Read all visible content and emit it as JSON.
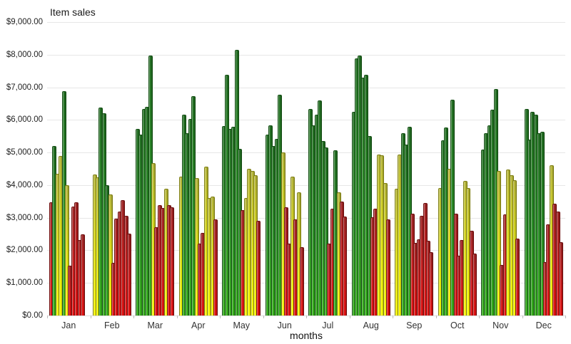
{
  "title": "Item sales",
  "x_axis_title": "months",
  "chart_data": {
    "type": "bar",
    "title": "Item sales",
    "xlabel": "months",
    "ylabel": "",
    "ylim": [
      0,
      9000
    ],
    "ytick_step": 1000,
    "grid": true,
    "legend": false,
    "ytick_labels_top_to_bottom": [
      "$9,000.00",
      "$8,000.00",
      "$7,000.00",
      "$6,000.00",
      "$5,000.00",
      "$4,000.00",
      "$3,000.00",
      "$2,000.00",
      "$1,000.00",
      "$0.00"
    ],
    "categories": [
      "Jan",
      "Feb",
      "Mar",
      "Apr",
      "May",
      "Jun",
      "Jul",
      "Aug",
      "Sep",
      "Oct",
      "Nov",
      "Dec"
    ],
    "color_legend": {
      "G": "green-high",
      "Y": "yellow-mid",
      "R": "red-low"
    },
    "colors": {
      "G": "#2c8f28",
      "Y": "#e6e600",
      "R": "#c81d1d"
    },
    "bars_by_month": [
      {
        "month": "Jan",
        "bars": [
          [
            3480,
            "R"
          ],
          [
            5200,
            "G"
          ],
          [
            4350,
            "Y"
          ],
          [
            4900,
            "Y"
          ],
          [
            6880,
            "G"
          ],
          [
            4000,
            "Y"
          ],
          [
            1520,
            "R"
          ],
          [
            3340,
            "R"
          ],
          [
            3480,
            "R"
          ],
          [
            2320,
            "R"
          ],
          [
            2480,
            "R"
          ]
        ]
      },
      {
        "month": "Feb",
        "bars": [
          [
            4330,
            "Y"
          ],
          [
            4240,
            "Y"
          ],
          [
            6380,
            "G"
          ],
          [
            6210,
            "G"
          ],
          [
            3990,
            "G"
          ],
          [
            3710,
            "Y"
          ],
          [
            1620,
            "R"
          ],
          [
            2980,
            "R"
          ],
          [
            3180,
            "R"
          ],
          [
            3540,
            "R"
          ],
          [
            3050,
            "R"
          ],
          [
            2520,
            "R"
          ]
        ]
      },
      {
        "month": "Mar",
        "bars": [
          [
            5730,
            "G"
          ],
          [
            5550,
            "G"
          ],
          [
            6330,
            "G"
          ],
          [
            6400,
            "G"
          ],
          [
            7980,
            "G"
          ],
          [
            4680,
            "Y"
          ],
          [
            2720,
            "R"
          ],
          [
            3380,
            "R"
          ],
          [
            3300,
            "R"
          ],
          [
            3880,
            "Y"
          ],
          [
            3380,
            "R"
          ],
          [
            3330,
            "R"
          ]
        ]
      },
      {
        "month": "Apr",
        "bars": [
          [
            4250,
            "Y"
          ],
          [
            6170,
            "G"
          ],
          [
            5600,
            "G"
          ],
          [
            6040,
            "G"
          ],
          [
            6720,
            "G"
          ],
          [
            4210,
            "Y"
          ],
          [
            2200,
            "R"
          ],
          [
            2540,
            "R"
          ],
          [
            4560,
            "Y"
          ],
          [
            3600,
            "Y"
          ],
          [
            3650,
            "Y"
          ],
          [
            2960,
            "R"
          ]
        ]
      },
      {
        "month": "May",
        "bars": [
          [
            5810,
            "G"
          ],
          [
            7390,
            "G"
          ],
          [
            5720,
            "G"
          ],
          [
            5780,
            "G"
          ],
          [
            8150,
            "G"
          ],
          [
            5120,
            "G"
          ],
          [
            3230,
            "R"
          ],
          [
            3600,
            "Y"
          ],
          [
            4510,
            "Y"
          ],
          [
            4440,
            "Y"
          ],
          [
            4310,
            "Y"
          ],
          [
            2910,
            "R"
          ]
        ]
      },
      {
        "month": "Jun",
        "bars": [
          [
            5550,
            "G"
          ],
          [
            5840,
            "G"
          ],
          [
            5210,
            "G"
          ],
          [
            5410,
            "G"
          ],
          [
            6780,
            "G"
          ],
          [
            5010,
            "Y"
          ],
          [
            3310,
            "R"
          ],
          [
            2210,
            "R"
          ],
          [
            4250,
            "Y"
          ],
          [
            2960,
            "R"
          ],
          [
            3790,
            "Y"
          ],
          [
            2100,
            "R"
          ]
        ]
      },
      {
        "month": "Jul",
        "bars": [
          [
            6340,
            "G"
          ],
          [
            5840,
            "G"
          ],
          [
            6150,
            "G"
          ],
          [
            6600,
            "G"
          ],
          [
            5350,
            "G"
          ],
          [
            5160,
            "G"
          ],
          [
            2210,
            "R"
          ],
          [
            3280,
            "R"
          ],
          [
            5070,
            "G"
          ],
          [
            3770,
            "Y"
          ],
          [
            3490,
            "R"
          ],
          [
            3040,
            "R"
          ]
        ]
      },
      {
        "month": "Aug",
        "bars": [
          [
            6250,
            "G"
          ],
          [
            7890,
            "G"
          ],
          [
            7970,
            "G"
          ],
          [
            7300,
            "G"
          ],
          [
            7380,
            "G"
          ],
          [
            5510,
            "G"
          ],
          [
            3010,
            "R"
          ],
          [
            3280,
            "R"
          ],
          [
            4940,
            "Y"
          ],
          [
            4910,
            "Y"
          ],
          [
            4060,
            "Y"
          ],
          [
            2950,
            "R"
          ]
        ]
      },
      {
        "month": "Sep",
        "bars": [
          [
            3890,
            "Y"
          ],
          [
            4930,
            "Y"
          ],
          [
            5590,
            "G"
          ],
          [
            5240,
            "G"
          ],
          [
            5800,
            "G"
          ],
          [
            3120,
            "R"
          ],
          [
            2230,
            "R"
          ],
          [
            2330,
            "R"
          ],
          [
            3050,
            "R"
          ],
          [
            3450,
            "R"
          ],
          [
            2300,
            "R"
          ],
          [
            1950,
            "R"
          ]
        ]
      },
      {
        "month": "Oct",
        "bars": [
          [
            3900,
            "Y"
          ],
          [
            5370,
            "G"
          ],
          [
            5760,
            "G"
          ],
          [
            4510,
            "Y"
          ],
          [
            6630,
            "G"
          ],
          [
            3120,
            "R"
          ],
          [
            1840,
            "R"
          ],
          [
            2320,
            "R"
          ],
          [
            4130,
            "Y"
          ],
          [
            3900,
            "Y"
          ],
          [
            2610,
            "R"
          ],
          [
            1900,
            "R"
          ]
        ]
      },
      {
        "month": "Nov",
        "bars": [
          [
            5090,
            "G"
          ],
          [
            5600,
            "G"
          ],
          [
            5840,
            "G"
          ],
          [
            6310,
            "G"
          ],
          [
            6950,
            "G"
          ],
          [
            4430,
            "Y"
          ],
          [
            1560,
            "R"
          ],
          [
            3110,
            "R"
          ],
          [
            4470,
            "Y"
          ],
          [
            4310,
            "Y"
          ],
          [
            4150,
            "Y"
          ],
          [
            2360,
            "R"
          ]
        ]
      },
      {
        "month": "Dec",
        "bars": [
          [
            6340,
            "G"
          ],
          [
            5390,
            "G"
          ],
          [
            6240,
            "G"
          ],
          [
            6160,
            "G"
          ],
          [
            5590,
            "G"
          ],
          [
            5640,
            "G"
          ],
          [
            1640,
            "R"
          ],
          [
            2790,
            "R"
          ],
          [
            4600,
            "Y"
          ],
          [
            3420,
            "R"
          ],
          [
            3180,
            "R"
          ],
          [
            2250,
            "R"
          ]
        ]
      }
    ]
  }
}
